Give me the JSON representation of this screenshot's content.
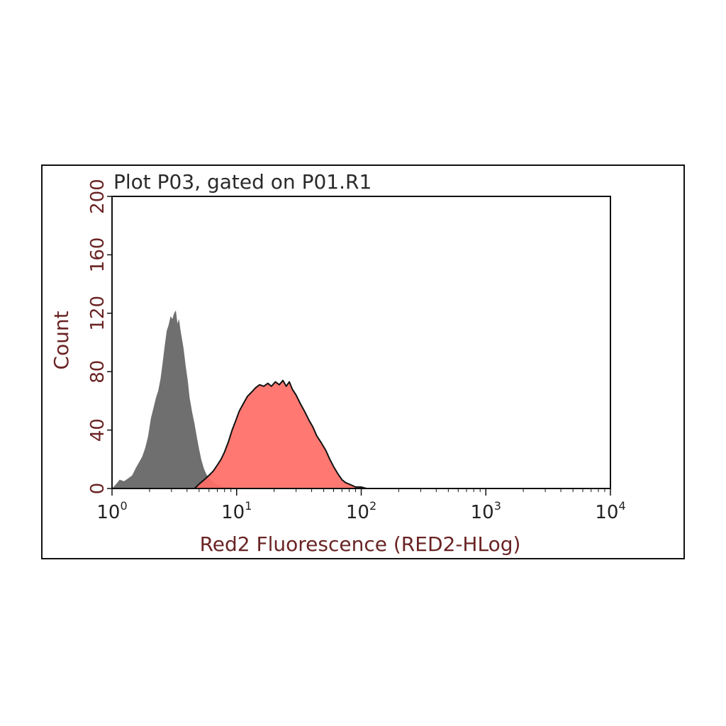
{
  "chart_data": {
    "type": "area",
    "title": "Plot P03, gated on P01.R1",
    "xlabel": "Red2 Fluorescence (RED2-HLog)",
    "ylabel": "Count",
    "x_scale": "log",
    "xlim": [
      1,
      10000
    ],
    "ylim": [
      0,
      200
    ],
    "yticks": [
      "0",
      "40",
      "80",
      "120",
      "160",
      "200"
    ],
    "xticks": [
      {
        "base": "10",
        "exp": "0",
        "value": 1
      },
      {
        "base": "10",
        "exp": "1",
        "value": 10
      },
      {
        "base": "10",
        "exp": "2",
        "value": 100
      },
      {
        "base": "10",
        "exp": "3",
        "value": 1000
      },
      {
        "base": "10",
        "exp": "4",
        "value": 10000
      }
    ],
    "grid": false,
    "series": [
      {
        "color": "#6b6b6b",
        "fill": "#6f6f6f",
        "outline": false,
        "points": [
          [
            1.0,
            0
          ],
          [
            1.08,
            3
          ],
          [
            1.15,
            6
          ],
          [
            1.25,
            5
          ],
          [
            1.35,
            7
          ],
          [
            1.45,
            9
          ],
          [
            1.55,
            14
          ],
          [
            1.65,
            18
          ],
          [
            1.75,
            22
          ],
          [
            1.85,
            28
          ],
          [
            1.95,
            36
          ],
          [
            2.05,
            48
          ],
          [
            2.15,
            55
          ],
          [
            2.25,
            62
          ],
          [
            2.35,
            67
          ],
          [
            2.45,
            75
          ],
          [
            2.55,
            86
          ],
          [
            2.65,
            98
          ],
          [
            2.75,
            108
          ],
          [
            2.85,
            112
          ],
          [
            2.95,
            118
          ],
          [
            3.05,
            116
          ],
          [
            3.15,
            120
          ],
          [
            3.25,
            122
          ],
          [
            3.35,
            113
          ],
          [
            3.45,
            116
          ],
          [
            3.55,
            108
          ],
          [
            3.65,
            102
          ],
          [
            3.75,
            96
          ],
          [
            3.9,
            84
          ],
          [
            4.05,
            74
          ],
          [
            4.2,
            62
          ],
          [
            4.4,
            52
          ],
          [
            4.6,
            44
          ],
          [
            4.8,
            35
          ],
          [
            5.0,
            27
          ],
          [
            5.2,
            20
          ],
          [
            5.45,
            14
          ],
          [
            5.7,
            10
          ],
          [
            6.0,
            7
          ],
          [
            6.4,
            5
          ],
          [
            6.8,
            3
          ],
          [
            7.3,
            2
          ],
          [
            8.0,
            1
          ],
          [
            9.0,
            1
          ],
          [
            10.0,
            0
          ]
        ]
      },
      {
        "color": "#111111",
        "fill": "#ff6e66",
        "outline": true,
        "points": [
          [
            4.6,
            0
          ],
          [
            5.0,
            3
          ],
          [
            5.5,
            6
          ],
          [
            6.0,
            9
          ],
          [
            6.5,
            12
          ],
          [
            7.0,
            16
          ],
          [
            7.5,
            20
          ],
          [
            8.0,
            25
          ],
          [
            8.6,
            32
          ],
          [
            9.2,
            40
          ],
          [
            9.8,
            46
          ],
          [
            10.5,
            53
          ],
          [
            11.3,
            58
          ],
          [
            12.2,
            63
          ],
          [
            13.2,
            66
          ],
          [
            14.2,
            69
          ],
          [
            15.3,
            71
          ],
          [
            16.5,
            70
          ],
          [
            17.8,
            72
          ],
          [
            19.0,
            70
          ],
          [
            20.5,
            73
          ],
          [
            22.0,
            71
          ],
          [
            23.5,
            74
          ],
          [
            25.0,
            70
          ],
          [
            26.5,
            73
          ],
          [
            28.0,
            68
          ],
          [
            30.0,
            64
          ],
          [
            32.5,
            58
          ],
          [
            35.0,
            53
          ],
          [
            38.0,
            47
          ],
          [
            41.0,
            42
          ],
          [
            44.0,
            36
          ],
          [
            48.0,
            31
          ],
          [
            52.0,
            26
          ],
          [
            56.0,
            20
          ],
          [
            60.0,
            15
          ],
          [
            65.0,
            10
          ],
          [
            70.0,
            6
          ],
          [
            75.0,
            4
          ],
          [
            80.0,
            3
          ],
          [
            85.0,
            2
          ],
          [
            90.0,
            1
          ],
          [
            100.0,
            1
          ],
          [
            110.0,
            0
          ]
        ]
      }
    ]
  }
}
